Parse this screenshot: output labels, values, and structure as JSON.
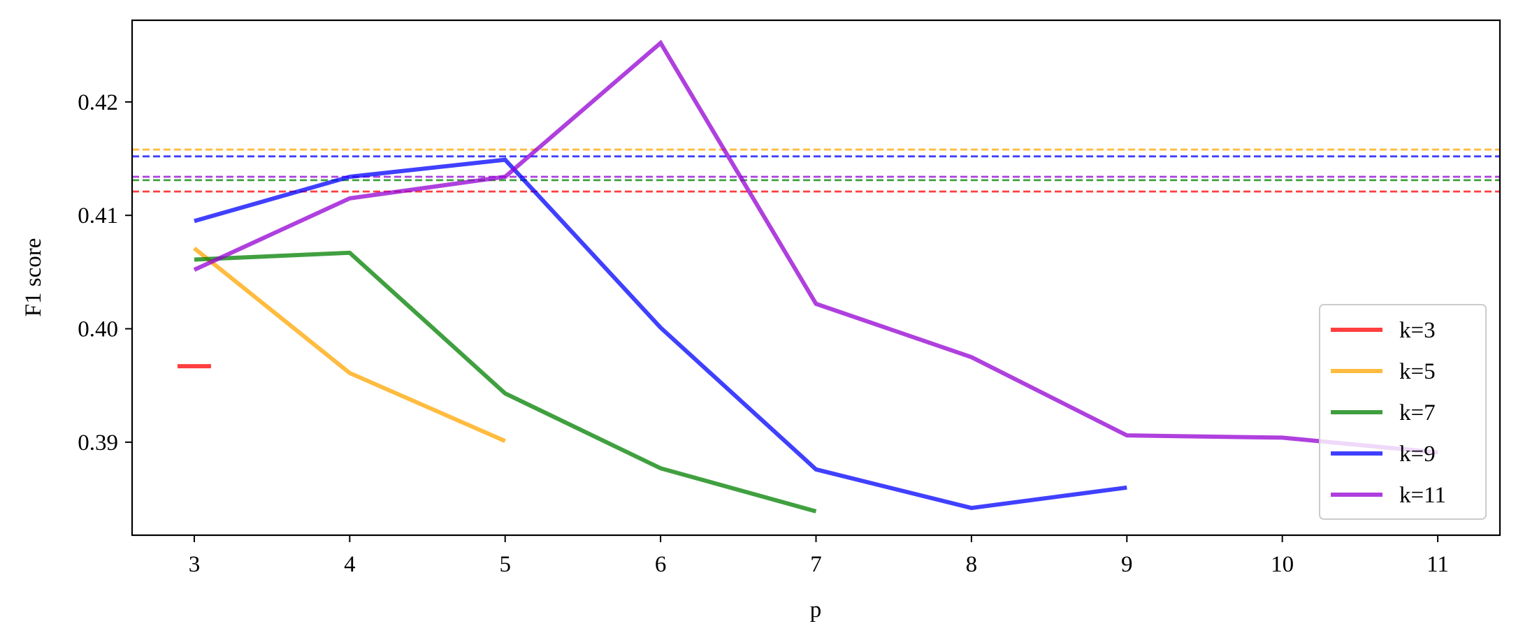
{
  "chart_data": {
    "type": "line",
    "title": "",
    "xlabel": "p",
    "ylabel": "F1 score",
    "xlim": [
      2.6,
      11.4
    ],
    "ylim": [
      0.3818,
      0.4272
    ],
    "xticks": [
      3,
      4,
      5,
      6,
      7,
      8,
      9,
      10,
      11
    ],
    "xtick_labels": [
      "3",
      "4",
      "5",
      "6",
      "7",
      "8",
      "9",
      "10",
      "11"
    ],
    "yticks": [
      0.39,
      0.4,
      0.41,
      0.42
    ],
    "ytick_labels": [
      "0.39",
      "0.40",
      "0.41",
      "0.42"
    ],
    "grid": false,
    "legend_position": "lower-right",
    "series": [
      {
        "name": "k=3",
        "color": "#ff0000",
        "x": [
          3
        ],
        "y": [
          0.3967
        ],
        "baseline": 0.4121
      },
      {
        "name": "k=5",
        "color": "#ffa500",
        "x": [
          3,
          4,
          5
        ],
        "y": [
          0.4071,
          0.3961,
          0.3901
        ],
        "baseline": 0.4158
      },
      {
        "name": "k=7",
        "color": "#008000",
        "x": [
          3,
          4,
          5,
          6,
          7
        ],
        "y": [
          0.4061,
          0.4067,
          0.3943,
          0.3877,
          0.3839
        ],
        "baseline": 0.4131
      },
      {
        "name": "k=9",
        "color": "#0000ff",
        "x": [
          3,
          4,
          5,
          6,
          7,
          8,
          9
        ],
        "y": [
          0.4095,
          0.4134,
          0.4149,
          0.4001,
          0.3876,
          0.3842,
          0.386
        ],
        "baseline": 0.4152
      },
      {
        "name": "k=11",
        "color": "#9400d3",
        "x": [
          3,
          4,
          5,
          6,
          7,
          8,
          9,
          10,
          11
        ],
        "y": [
          0.4052,
          0.4115,
          0.4134,
          0.4252,
          0.4022,
          0.3975,
          0.3906,
          0.3904,
          0.3891
        ],
        "baseline": 0.4134
      }
    ]
  }
}
